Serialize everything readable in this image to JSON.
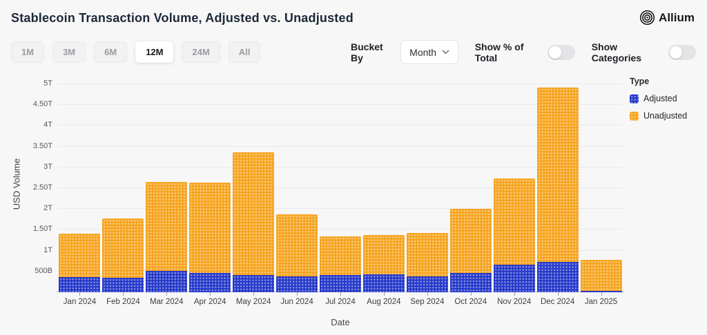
{
  "header": {
    "title": "Stablecoin Transaction Volume, Adjusted vs. Unadjusted",
    "brand": "Allium"
  },
  "controls": {
    "range_buttons": [
      {
        "label": "1M",
        "selected": false
      },
      {
        "label": "3M",
        "selected": false
      },
      {
        "label": "6M",
        "selected": false
      },
      {
        "label": "12M",
        "selected": true
      },
      {
        "label": "24M",
        "selected": false
      },
      {
        "label": "All",
        "selected": false
      }
    ],
    "bucket_by": {
      "label": "Bucket By",
      "value": "Month"
    },
    "show_pct_toggle": {
      "label": "Show % of Total",
      "on": false
    },
    "show_categories_toggle": {
      "label": "Show Categories",
      "on": false
    }
  },
  "chart_data": {
    "type": "bar",
    "stacked": true,
    "title": "Stablecoin Transaction Volume, Adjusted vs. Unadjusted",
    "xlabel": "Date",
    "ylabel": "USD Volume",
    "unit": "USD billions",
    "categories": [
      "Jan 2024",
      "Feb 2024",
      "Mar 2024",
      "Apr 2024",
      "May 2024",
      "Jun 2024",
      "Jul 2024",
      "Aug 2024",
      "Sep 2024",
      "Oct 2024",
      "Nov 2024",
      "Dec 2024",
      "Jan 2025"
    ],
    "series": [
      {
        "name": "Adjusted",
        "color": "#2639c9",
        "values_billions": [
          360,
          345,
          520,
          470,
          410,
          380,
          420,
          425,
          380,
          465,
          660,
          730,
          40
        ]
      },
      {
        "name": "Unadjusted",
        "color": "#f6a41f",
        "values_billions": [
          1050,
          1435,
          2130,
          2170,
          2960,
          1490,
          920,
          955,
          1050,
          1535,
          2070,
          4190,
          740
        ]
      }
    ],
    "stacked_totals_billions": [
      1410,
      1780,
      2650,
      2640,
      3370,
      1870,
      1340,
      1380,
      1430,
      2000,
      2730,
      4920,
      780
    ],
    "y_ticks": [
      {
        "label": "500B",
        "value": 500
      },
      {
        "label": "1T",
        "value": 1000
      },
      {
        "label": "1.50T",
        "value": 1500
      },
      {
        "label": "2T",
        "value": 2000
      },
      {
        "label": "2.50T",
        "value": 2500
      },
      {
        "label": "3T",
        "value": 3000
      },
      {
        "label": "3.50T",
        "value": 3500
      },
      {
        "label": "4T",
        "value": 4000
      },
      {
        "label": "4.50T",
        "value": 4500
      },
      {
        "label": "5T",
        "value": 5000
      }
    ],
    "ylim_billions": [
      0,
      5200
    ],
    "grid": true,
    "legend": {
      "title": "Type",
      "position": "right",
      "entries": [
        "Adjusted",
        "Unadjusted"
      ]
    }
  },
  "colors": {
    "adjusted": "#2639c9",
    "unadjusted": "#f6a41f",
    "page_bg": "#f7f7f8",
    "title_text": "#1c2838"
  }
}
